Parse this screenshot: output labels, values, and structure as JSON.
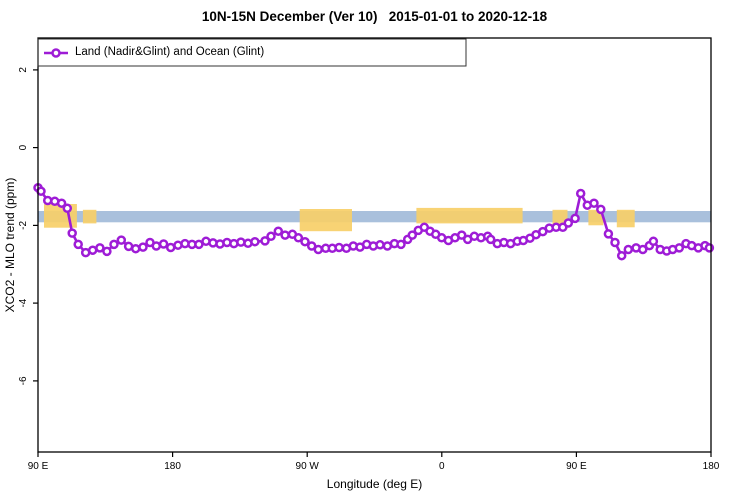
{
  "title": "10N-15N December (Ver 10)   2015-01-01 to 2020-12-18",
  "legend": {
    "label": "Land (Nadir&Glint) and Ocean (Glint)"
  },
  "colors": {
    "series": "#9e1cd6",
    "ocean_band": "#a9c0dc",
    "land": "#f7cf68",
    "axis": "#000000"
  },
  "chart_data": {
    "type": "line",
    "title": "10N-15N December (Ver 10)   2015-01-01 to 2020-12-18",
    "xlabel": "Longitude (deg E)",
    "ylabel": "XCO2 - MLO trend (ppm)",
    "xlim": [
      90,
      540
    ],
    "ylim": [
      -7.83,
      2.82
    ],
    "grid": false,
    "legend_position": "top-left",
    "x_ticks": [
      {
        "pos": 90,
        "label": "90 E"
      },
      {
        "pos": 180,
        "label": "180"
      },
      {
        "pos": 270,
        "label": "90 W"
      },
      {
        "pos": 360,
        "label": "0"
      },
      {
        "pos": 450,
        "label": "90 E"
      },
      {
        "pos": 540,
        "label": "180"
      }
    ],
    "y_ticks": [
      {
        "pos": 2,
        "label": "2"
      },
      {
        "pos": 0,
        "label": "0"
      },
      {
        "pos": -2,
        "label": "-2"
      },
      {
        "pos": -4,
        "label": "-4"
      },
      {
        "pos": -6,
        "label": "-6"
      }
    ],
    "background": {
      "ocean_band": {
        "y_top": -1.63,
        "y_bot": -1.92
      },
      "land_segments": [
        {
          "x_min": 94,
          "x_max": 116,
          "y_top": -1.45,
          "y_bot": -2.06
        },
        {
          "x_min": 120,
          "x_max": 129,
          "y_top": -1.6,
          "y_bot": -1.95
        },
        {
          "x_min": 265,
          "x_max": 300,
          "y_top": -1.58,
          "y_bot": -2.15
        },
        {
          "x_min": 343,
          "x_max": 414,
          "y_top": -1.55,
          "y_bot": -1.95
        },
        {
          "x_min": 434,
          "x_max": 444,
          "y_top": -1.6,
          "y_bot": -2.1
        },
        {
          "x_min": 458,
          "x_max": 468,
          "y_top": -1.6,
          "y_bot": -2.0
        },
        {
          "x_min": 477,
          "x_max": 489,
          "y_top": -1.6,
          "y_bot": -2.05
        }
      ]
    },
    "series": [
      {
        "name": "Land (Nadir&Glint) and Ocean (Glint)",
        "marker": "open-circle",
        "points": [
          [
            90.0,
            -1.03
          ],
          [
            92.0,
            -1.12
          ],
          [
            96.5,
            -1.36
          ],
          [
            101.2,
            -1.38
          ],
          [
            105.8,
            -1.43
          ],
          [
            109.6,
            -1.56
          ],
          [
            112.9,
            -2.2
          ],
          [
            116.9,
            -2.49
          ],
          [
            121.9,
            -2.7
          ],
          [
            126.6,
            -2.64
          ],
          [
            131.4,
            -2.58
          ],
          [
            136.1,
            -2.67
          ],
          [
            140.8,
            -2.49
          ],
          [
            145.7,
            -2.38
          ],
          [
            150.6,
            -2.54
          ],
          [
            155.3,
            -2.6
          ],
          [
            160.2,
            -2.56
          ],
          [
            164.9,
            -2.44
          ],
          [
            169.1,
            -2.53
          ],
          [
            174.0,
            -2.48
          ],
          [
            178.7,
            -2.57
          ],
          [
            183.6,
            -2.51
          ],
          [
            188.3,
            -2.47
          ],
          [
            193.0,
            -2.49
          ],
          [
            197.6,
            -2.49
          ],
          [
            202.3,
            -2.41
          ],
          [
            207.0,
            -2.45
          ],
          [
            211.7,
            -2.48
          ],
          [
            216.4,
            -2.44
          ],
          [
            221.0,
            -2.47
          ],
          [
            225.7,
            -2.43
          ],
          [
            230.4,
            -2.46
          ],
          [
            235.0,
            -2.42
          ],
          [
            241.8,
            -2.4
          ],
          [
            245.8,
            -2.28
          ],
          [
            250.7,
            -2.15
          ],
          [
            255.2,
            -2.25
          ],
          [
            260.1,
            -2.23
          ],
          [
            264.1,
            -2.32
          ],
          [
            268.5,
            -2.42
          ],
          [
            273.0,
            -2.53
          ],
          [
            277.4,
            -2.62
          ],
          [
            282.4,
            -2.59
          ],
          [
            286.8,
            -2.59
          ],
          [
            291.3,
            -2.57
          ],
          [
            296.2,
            -2.59
          ],
          [
            300.8,
            -2.53
          ],
          [
            305.3,
            -2.56
          ],
          [
            309.8,
            -2.49
          ],
          [
            314.2,
            -2.53
          ],
          [
            318.7,
            -2.5
          ],
          [
            323.6,
            -2.53
          ],
          [
            328.3,
            -2.47
          ],
          [
            332.7,
            -2.49
          ],
          [
            337.2,
            -2.36
          ],
          [
            340.3,
            -2.25
          ],
          [
            344.3,
            -2.13
          ],
          [
            348.3,
            -2.05
          ],
          [
            352.1,
            -2.15
          ],
          [
            355.9,
            -2.23
          ],
          [
            359.9,
            -2.32
          ],
          [
            364.4,
            -2.39
          ],
          [
            368.8,
            -2.32
          ],
          [
            373.3,
            -2.25
          ],
          [
            377.3,
            -2.36
          ],
          [
            381.7,
            -2.28
          ],
          [
            386.2,
            -2.32
          ],
          [
            390.7,
            -2.28
          ],
          [
            392.7,
            -2.36
          ],
          [
            397.1,
            -2.47
          ],
          [
            401.5,
            -2.44
          ],
          [
            406.0,
            -2.47
          ],
          [
            410.5,
            -2.41
          ],
          [
            414.5,
            -2.39
          ],
          [
            419.0,
            -2.33
          ],
          [
            423.0,
            -2.24
          ],
          [
            427.5,
            -2.16
          ],
          [
            431.9,
            -2.07
          ],
          [
            436.4,
            -2.05
          ],
          [
            440.9,
            -2.05
          ],
          [
            444.6,
            -1.94
          ],
          [
            449.1,
            -1.82
          ],
          [
            452.9,
            -1.18
          ],
          [
            457.3,
            -1.48
          ],
          [
            461.8,
            -1.43
          ],
          [
            466.3,
            -1.59
          ],
          [
            471.4,
            -2.22
          ],
          [
            475.8,
            -2.44
          ],
          [
            480.3,
            -2.78
          ],
          [
            484.7,
            -2.62
          ],
          [
            489.9,
            -2.58
          ],
          [
            494.4,
            -2.62
          ],
          [
            498.8,
            -2.52
          ],
          [
            501.5,
            -2.41
          ],
          [
            506.0,
            -2.62
          ],
          [
            510.4,
            -2.66
          ],
          [
            514.4,
            -2.62
          ],
          [
            518.8,
            -2.58
          ],
          [
            523.3,
            -2.47
          ],
          [
            527.1,
            -2.52
          ],
          [
            531.5,
            -2.58
          ],
          [
            536.0,
            -2.52
          ],
          [
            538.9,
            -2.58
          ]
        ]
      }
    ]
  }
}
